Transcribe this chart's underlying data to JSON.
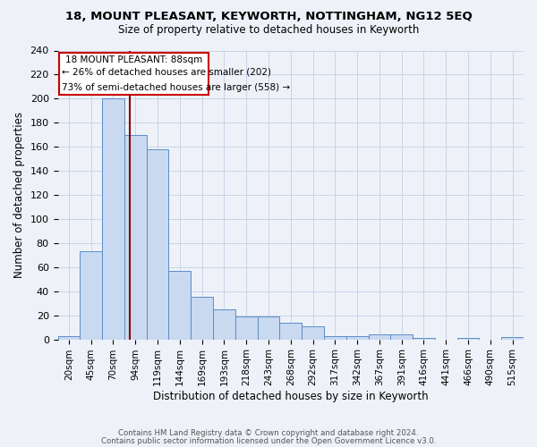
{
  "title": "18, MOUNT PLEASANT, KEYWORTH, NOTTINGHAM, NG12 5EQ",
  "subtitle": "Size of property relative to detached houses in Keyworth",
  "xlabel": "Distribution of detached houses by size in Keyworth",
  "ylabel": "Number of detached properties",
  "bar_labels": [
    "20sqm",
    "45sqm",
    "70sqm",
    "94sqm",
    "119sqm",
    "144sqm",
    "169sqm",
    "193sqm",
    "218sqm",
    "243sqm",
    "268sqm",
    "292sqm",
    "317sqm",
    "342sqm",
    "367sqm",
    "391sqm",
    "416sqm",
    "441sqm",
    "466sqm",
    "490sqm",
    "515sqm"
  ],
  "bar_values": [
    3,
    73,
    200,
    170,
    158,
    57,
    35,
    25,
    19,
    19,
    14,
    11,
    3,
    3,
    4,
    4,
    1,
    0,
    1,
    0,
    2
  ],
  "bar_color": "#c9d9f0",
  "bar_edge_color": "#5b8dc9",
  "annotation_line1": "18 MOUNT PLEASANT: 88sqm",
  "annotation_line2": "← 26% of detached houses are smaller (202)",
  "annotation_line3": "73% of semi-detached houses are larger (558) →",
  "vline_color": "#8b0000",
  "annotation_box_color": "#ffffff",
  "annotation_box_edge_color": "#cc0000",
  "grid_color": "#c8d4e8",
  "background_color": "#eef2f8",
  "footer_line1": "Contains HM Land Registry data © Crown copyright and database right 2024.",
  "footer_line2": "Contains public sector information licensed under the Open Government Licence v3.0.",
  "ylim": [
    0,
    240
  ],
  "yticks": [
    0,
    20,
    40,
    60,
    80,
    100,
    120,
    140,
    160,
    180,
    200,
    220,
    240
  ],
  "vline_x_index": 2.75,
  "figsize": [
    6.0,
    5.0
  ],
  "dpi": 100
}
